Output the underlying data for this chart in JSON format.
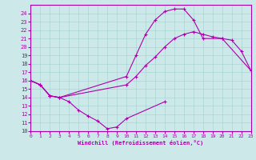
{
  "background_color": "#cce8e8",
  "grid_color": "#aad4d4",
  "line_color": "#aa00aa",
  "xlabel": "Windchill (Refroidissement éolien,°C)",
  "ylim": [
    10,
    25
  ],
  "xlim": [
    0,
    23
  ],
  "yticks": [
    10,
    11,
    12,
    13,
    14,
    15,
    16,
    17,
    18,
    19,
    20,
    21,
    22,
    23,
    24
  ],
  "xticks": [
    0,
    1,
    2,
    3,
    4,
    5,
    6,
    7,
    8,
    9,
    10,
    11,
    12,
    13,
    14,
    15,
    16,
    17,
    18,
    19,
    20,
    21,
    22,
    23
  ],
  "lines": [
    {
      "x": [
        0,
        1,
        2,
        3,
        4,
        5,
        6,
        7,
        8,
        9,
        10,
        14
      ],
      "y": [
        16,
        15.5,
        14.2,
        14.0,
        13.5,
        12.5,
        11.8,
        11.2,
        10.3,
        10.5,
        11.5,
        13.5
      ]
    },
    {
      "x": [
        0,
        1,
        2,
        3,
        10,
        11,
        12,
        13,
        14,
        15,
        16,
        17,
        18,
        20,
        23
      ],
      "y": [
        16,
        15.5,
        14.2,
        14.0,
        16.5,
        19.0,
        21.5,
        23.2,
        24.2,
        24.5,
        24.5,
        23.2,
        21.0,
        21.0,
        17.2
      ]
    },
    {
      "x": [
        0,
        1,
        2,
        3,
        10,
        11,
        12,
        13,
        14,
        15,
        16,
        17,
        18,
        19,
        20,
        21,
        22,
        23
      ],
      "y": [
        16,
        15.5,
        14.2,
        14.0,
        15.5,
        16.5,
        17.8,
        18.8,
        20.0,
        21.0,
        21.5,
        21.8,
        21.5,
        21.2,
        21.0,
        20.8,
        19.5,
        17.2
      ]
    }
  ]
}
